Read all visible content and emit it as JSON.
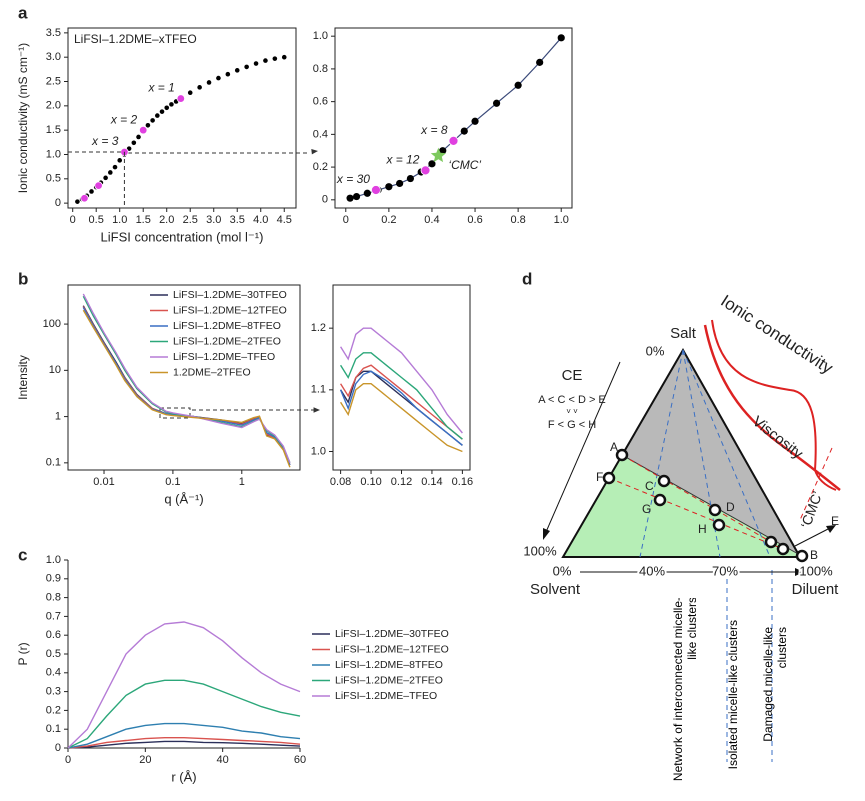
{
  "panel_labels": [
    "a",
    "b",
    "c",
    "d"
  ],
  "chart_data": [
    {
      "type": "scatter",
      "title": "LiFSI–1.2DME–xTFEO",
      "xlabel": "LiFSI concentration (mol l⁻¹)",
      "ylabel": "Ionic conductivity (mS cm⁻¹)",
      "xlim": [
        -0.1,
        4.75
      ],
      "ylim": [
        -0.1,
        3.6
      ],
      "xticks": [
        0,
        0.5,
        {
          "value": 1,
          "label": "1.0"
        },
        1.5,
        {
          "value": 2,
          "label": "2.0"
        },
        2.5,
        {
          "value": 3,
          "label": "3.0"
        },
        3.5,
        {
          "value": 4,
          "label": "4.0"
        },
        4.5
      ],
      "yticks": [
        0,
        0.5,
        {
          "value": 1,
          "label": "1.0"
        },
        1.5,
        {
          "value": 2,
          "label": "2.0"
        },
        2.5,
        {
          "value": 3,
          "label": "3.0"
        },
        3.5
      ],
      "series": [
        {
          "color": "#000000",
          "x": [
            0.1,
            0.2,
            0.3,
            0.4,
            0.5,
            0.6,
            0.7,
            0.8,
            0.9,
            1.0,
            1.1,
            1.2,
            1.3,
            1.4,
            1.5,
            1.6,
            1.7,
            1.8,
            1.9,
            2.0,
            2.1,
            2.2,
            2.3,
            2.5,
            2.7,
            2.9,
            3.1,
            3.3,
            3.5,
            3.7,
            3.9,
            4.1,
            4.3,
            4.5
          ],
          "values": [
            0.03,
            0.08,
            0.15,
            0.24,
            0.33,
            0.42,
            0.52,
            0.63,
            0.74,
            0.88,
            1.0,
            1.12,
            1.24,
            1.36,
            1.48,
            1.6,
            1.7,
            1.8,
            1.88,
            1.96,
            2.03,
            2.09,
            2.15,
            2.27,
            2.38,
            2.48,
            2.57,
            2.65,
            2.73,
            2.8,
            2.87,
            2.93,
            2.97,
            3.0
          ]
        },
        {
          "color": "#e040e0",
          "x": [
            1.1,
            1.5,
            2.3,
            0.25,
            0.55
          ],
          "values": [
            1.05,
            1.5,
            2.15,
            0.1,
            0.36
          ],
          "point_labels": [
            "x = 3",
            "x = 2",
            "x = 1",
            null,
            null
          ]
        }
      ]
    },
    {
      "type": "scatter",
      "xlim": [
        -0.05,
        1.05
      ],
      "ylim": [
        -0.05,
        1.05
      ],
      "connect": true,
      "xticks": [
        0,
        0.2,
        0.4,
        0.6,
        0.8,
        {
          "value": 1,
          "label": "1.0"
        }
      ],
      "yticks": [
        0,
        0.2,
        0.4,
        0.6,
        0.8,
        {
          "value": 1,
          "label": "1.0"
        }
      ],
      "series": [
        {
          "color": "#000000",
          "x": [
            0.02,
            0.05,
            0.1,
            0.15,
            0.2,
            0.25,
            0.3,
            0.35,
            0.4,
            0.45,
            0.5,
            0.55,
            0.6,
            0.7,
            0.8,
            0.9,
            1.0
          ],
          "values": [
            0.01,
            0.02,
            0.04,
            0.06,
            0.08,
            0.1,
            0.13,
            0.17,
            0.22,
            0.3,
            0.36,
            0.42,
            0.48,
            0.59,
            0.7,
            0.84,
            0.99
          ]
        },
        {
          "color": "#e040e0",
          "x": [
            0.14,
            0.37,
            0.5
          ],
          "values": [
            0.06,
            0.18,
            0.36
          ],
          "point_labels": [
            "x = 30",
            "x = 12",
            "x = 8"
          ]
        },
        {
          "color": "#7dc95e",
          "marker": "star",
          "x": [
            0.43
          ],
          "values": [
            0.27
          ],
          "point_labels": [
            "‘CMC’"
          ]
        }
      ]
    },
    {
      "type": "line",
      "xscale": "log",
      "yscale": "log",
      "xlabel": "q (Å⁻¹)",
      "ylabel": "Intensity",
      "legend": "upper right",
      "xlim": [
        0.003,
        7
      ],
      "ylim": [
        0.07,
        700
      ],
      "xticks": [
        0.01,
        0.1,
        1
      ],
      "yticks": [
        0.1,
        1,
        10,
        100
      ],
      "x": [
        0.005,
        0.007,
        0.01,
        0.015,
        0.02,
        0.03,
        0.05,
        0.08,
        0.1,
        0.2,
        0.5,
        1,
        1.5,
        1.8,
        2.3,
        3,
        4,
        5
      ],
      "series": [
        {
          "name": "LiFSI–1.2DME–30TFEO",
          "color": "#2b2f5a",
          "values": [
            250,
            100,
            40,
            15,
            7,
            3,
            1.5,
            1.15,
            1.1,
            1.0,
            0.85,
            0.7,
            0.9,
            1.0,
            0.4,
            0.35,
            0.2,
            0.09
          ]
        },
        {
          "name": "LiFSI–1.2DME–12TFEO",
          "color": "#d9534f",
          "values": [
            240,
            95,
            38,
            14,
            6.8,
            2.9,
            1.5,
            1.15,
            1.1,
            1.0,
            0.82,
            0.68,
            0.88,
            0.98,
            0.42,
            0.34,
            0.2,
            0.09
          ]
        },
        {
          "name": "LiFSI–1.2DME–8TFEO",
          "color": "#3a6fc4",
          "values": [
            230,
            92,
            37,
            14,
            6.5,
            2.8,
            1.45,
            1.15,
            1.1,
            1.0,
            0.8,
            0.65,
            0.85,
            0.95,
            0.45,
            0.36,
            0.21,
            0.09
          ]
        },
        {
          "name": "LiFSI–1.2DME–2TFEO",
          "color": "#2ca77a",
          "values": [
            400,
            150,
            60,
            22,
            10,
            4,
            1.9,
            1.25,
            1.15,
            1.0,
            0.75,
            0.6,
            0.8,
            0.9,
            0.5,
            0.38,
            0.22,
            0.1
          ]
        },
        {
          "name": "LiFSI–1.2DME–TFEO",
          "color": "#b57bd6",
          "values": [
            450,
            170,
            65,
            24,
            11,
            4.3,
            2.0,
            1.3,
            1.2,
            1.0,
            0.72,
            0.58,
            0.78,
            0.88,
            0.52,
            0.4,
            0.23,
            0.1
          ]
        },
        {
          "name": "1.2DME–2TFEO",
          "color": "#c9952a",
          "values": [
            200,
            85,
            35,
            13,
            6,
            2.7,
            1.4,
            1.1,
            1.05,
            0.95,
            0.85,
            0.75,
            0.95,
            1.02,
            0.38,
            0.33,
            0.19,
            0.08
          ]
        }
      ]
    },
    {
      "type": "line",
      "xlim": [
        0.075,
        0.165
      ],
      "ylim": [
        0.97,
        1.27
      ],
      "xticks": [
        0.08,
        {
          "value": 0.1,
          "label": "0.10"
        },
        0.12,
        0.14,
        0.16
      ],
      "yticks": [
        {
          "value": 1,
          "label": "1.0"
        },
        1.1,
        1.2
      ],
      "x": [
        0.08,
        0.085,
        0.09,
        0.095,
        0.1,
        0.11,
        0.12,
        0.13,
        0.14,
        0.15,
        0.16
      ],
      "series": [
        {
          "color": "#2b2f5a",
          "values": [
            1.1,
            1.08,
            1.12,
            1.13,
            1.13,
            1.11,
            1.09,
            1.07,
            1.05,
            1.03,
            1.01
          ]
        },
        {
          "color": "#d9534f",
          "values": [
            1.11,
            1.09,
            1.12,
            1.135,
            1.14,
            1.12,
            1.1,
            1.08,
            1.06,
            1.04,
            1.02
          ]
        },
        {
          "color": "#3a6fc4",
          "values": [
            1.1,
            1.07,
            1.11,
            1.125,
            1.13,
            1.115,
            1.095,
            1.07,
            1.05,
            1.03,
            1.01
          ]
        },
        {
          "color": "#2ca77a",
          "values": [
            1.14,
            1.12,
            1.15,
            1.16,
            1.16,
            1.14,
            1.12,
            1.1,
            1.07,
            1.04,
            1.02
          ]
        },
        {
          "color": "#b57bd6",
          "values": [
            1.17,
            1.15,
            1.19,
            1.2,
            1.2,
            1.18,
            1.16,
            1.13,
            1.1,
            1.06,
            1.03
          ]
        },
        {
          "color": "#c9952a",
          "values": [
            1.08,
            1.06,
            1.1,
            1.11,
            1.11,
            1.09,
            1.07,
            1.05,
            1.03,
            1.01,
            1.0
          ]
        }
      ]
    },
    {
      "type": "line",
      "xlabel": "r (Å)",
      "ylabel": "P (r)",
      "legend": "outside right",
      "xlim": [
        0,
        60
      ],
      "ylim": [
        0,
        1
      ],
      "xticks": [
        0,
        20,
        40,
        60
      ],
      "yticks": [
        0,
        0.1,
        0.2,
        0.3,
        0.4,
        0.5,
        0.6,
        0.7,
        0.8,
        0.9,
        {
          "value": 1,
          "label": "1.0"
        }
      ],
      "x": [
        0,
        5,
        10,
        15,
        20,
        25,
        30,
        35,
        40,
        45,
        50,
        55,
        60
      ],
      "series": [
        {
          "name": "LiFSI–1.2DME–30TFEO",
          "color": "#2b2f5a",
          "values": [
            0,
            0.005,
            0.015,
            0.025,
            0.03,
            0.035,
            0.035,
            0.03,
            0.028,
            0.025,
            0.02,
            0.015,
            0.01
          ]
        },
        {
          "name": "LiFSI–1.2DME–12TFEO",
          "color": "#d9534f",
          "values": [
            0,
            0.01,
            0.03,
            0.04,
            0.05,
            0.055,
            0.055,
            0.05,
            0.045,
            0.04,
            0.035,
            0.03,
            0.02
          ]
        },
        {
          "name": "LiFSI–1.2DME–8TFEO",
          "color": "#2e7fb0",
          "values": [
            0,
            0.02,
            0.06,
            0.1,
            0.12,
            0.13,
            0.13,
            0.12,
            0.11,
            0.09,
            0.08,
            0.06,
            0.05
          ]
        },
        {
          "name": "LiFSI–1.2DME–2TFEO",
          "color": "#2ca77a",
          "values": [
            0,
            0.05,
            0.17,
            0.28,
            0.34,
            0.36,
            0.36,
            0.34,
            0.3,
            0.26,
            0.22,
            0.19,
            0.17
          ]
        },
        {
          "name": "LiFSI–1.2DME–TFEO",
          "color": "#b57bd6",
          "values": [
            0,
            0.1,
            0.3,
            0.5,
            0.6,
            0.66,
            0.67,
            0.64,
            0.57,
            0.48,
            0.4,
            0.34,
            0.3
          ]
        }
      ]
    }
  ],
  "diagram": {
    "salt": "Salt",
    "solvent": "Solvent",
    "diluent": "Diluent",
    "left_top": "0%",
    "left_bottom": "100%",
    "bottom_ticks": [
      "0%",
      "40%",
      "70%",
      "100%"
    ],
    "ce_title": "CE",
    "ce_row1": "A < C < D > E",
    "ce_marks": "˅       ˅",
    "ce_row2": "F < G < H",
    "points": [
      "A",
      "F",
      "C",
      "G",
      "D",
      "H",
      "E",
      "B"
    ],
    "cmc": "‘CMC’",
    "conductivity": "Ionic conductivity",
    "viscosity": "Viscosity",
    "regions": [
      "Network of interconnected micelle-like clusters",
      "Isolated micelle-like clusters",
      "Damaged micelle-like clusters"
    ]
  }
}
